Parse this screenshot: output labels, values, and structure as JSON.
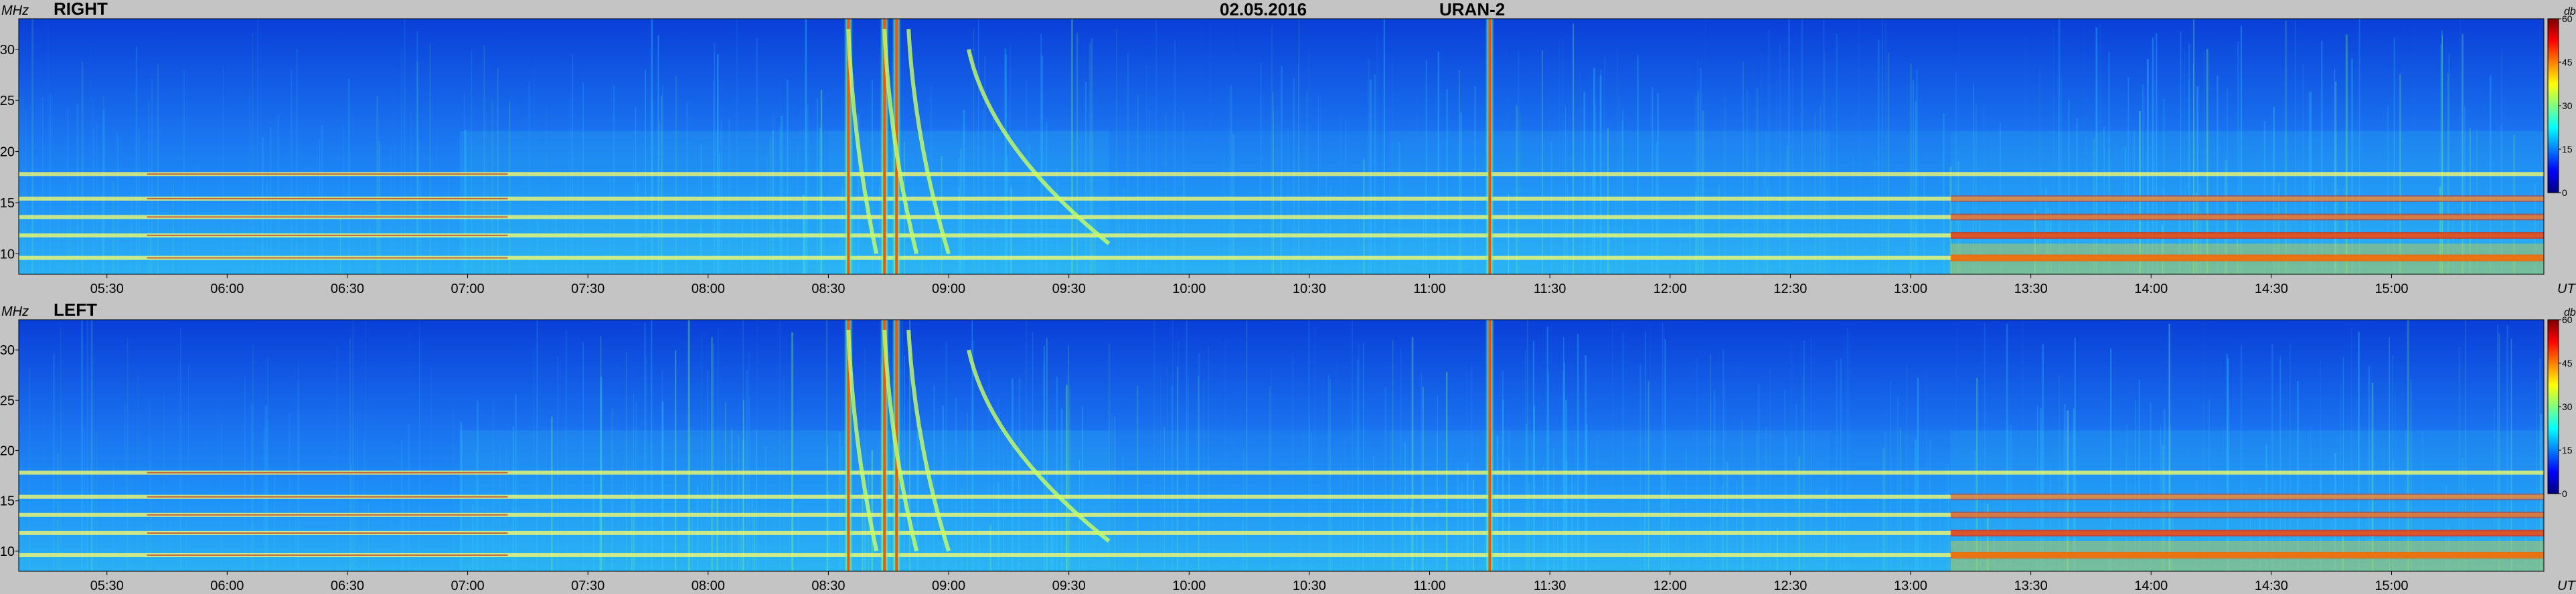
{
  "header": {
    "date": "02.05.2016",
    "instrument": "URAN-2"
  },
  "units": {
    "frequency": "MHz",
    "time": "UT",
    "colorbar": "db"
  },
  "colors": {
    "background": "#c4c4c4",
    "colormap": [
      "#00007f",
      "#0000ff",
      "#0080ff",
      "#00ffff",
      "#80ff80",
      "#ffff00",
      "#ff8000",
      "#ff0000",
      "#7f0000"
    ]
  },
  "chart_data": [
    {
      "type": "heatmap",
      "title": "RIGHT",
      "xlabel": "UT",
      "ylabel": "MHz",
      "xlim": [
        "05:08",
        "15:38"
      ],
      "ylim": [
        8,
        33
      ],
      "x_ticks": [
        "05:30",
        "06:00",
        "06:30",
        "07:00",
        "07:30",
        "08:00",
        "08:30",
        "09:00",
        "09:30",
        "10:00",
        "10:30",
        "11:00",
        "11:30",
        "12:00",
        "12:30",
        "13:00",
        "13:30",
        "14:00",
        "14:30",
        "15:00"
      ],
      "y_ticks": [
        10,
        15,
        20,
        25,
        30
      ],
      "colorbar": {
        "label": "db",
        "range": [
          0,
          60
        ],
        "ticks": [
          0,
          15,
          30,
          45,
          60
        ]
      },
      "background_level_db": 15,
      "features": {
        "interference_bands_mhz": [
          9.6,
          11.8,
          13.6,
          15.4,
          17.8
        ],
        "type_iii_bursts": [
          "08:35",
          "08:44",
          "08:47",
          "11:15"
        ],
        "drifting_bursts": [
          {
            "start": "08:35",
            "end": "08:42",
            "f_start_mhz": 32,
            "f_end_mhz": 10
          },
          {
            "start": "08:44",
            "end": "08:52",
            "f_start_mhz": 32,
            "f_end_mhz": 10
          },
          {
            "start": "08:50",
            "end": "09:00",
            "f_start_mhz": 32,
            "f_end_mhz": 10
          },
          {
            "start": "09:05",
            "end": "09:40",
            "f_start_mhz": 30,
            "f_end_mhz": 11
          }
        ]
      }
    },
    {
      "type": "heatmap",
      "title": "LEFT",
      "xlabel": "UT",
      "ylabel": "MHz",
      "xlim": [
        "05:08",
        "15:38"
      ],
      "ylim": [
        8,
        33
      ],
      "x_ticks": [
        "05:30",
        "06:00",
        "06:30",
        "07:00",
        "07:30",
        "08:00",
        "08:30",
        "09:00",
        "09:30",
        "10:00",
        "10:30",
        "11:00",
        "11:30",
        "12:00",
        "12:30",
        "13:00",
        "13:30",
        "14:00",
        "14:30",
        "15:00"
      ],
      "y_ticks": [
        10,
        15,
        20,
        25,
        30
      ],
      "colorbar": {
        "label": "db",
        "range": [
          0,
          60
        ],
        "ticks": [
          0,
          15,
          30,
          45,
          60
        ]
      },
      "background_level_db": 15,
      "features": {
        "interference_bands_mhz": [
          9.6,
          11.8,
          13.6,
          15.4,
          17.8
        ],
        "type_iii_bursts": [
          "08:35",
          "08:44",
          "08:47",
          "11:15"
        ],
        "drifting_bursts": [
          {
            "start": "08:35",
            "end": "08:42",
            "f_start_mhz": 32,
            "f_end_mhz": 10
          },
          {
            "start": "08:44",
            "end": "08:52",
            "f_start_mhz": 32,
            "f_end_mhz": 10
          },
          {
            "start": "08:50",
            "end": "09:00",
            "f_start_mhz": 32,
            "f_end_mhz": 10
          },
          {
            "start": "09:05",
            "end": "09:40",
            "f_start_mhz": 30,
            "f_end_mhz": 11
          }
        ]
      }
    }
  ]
}
